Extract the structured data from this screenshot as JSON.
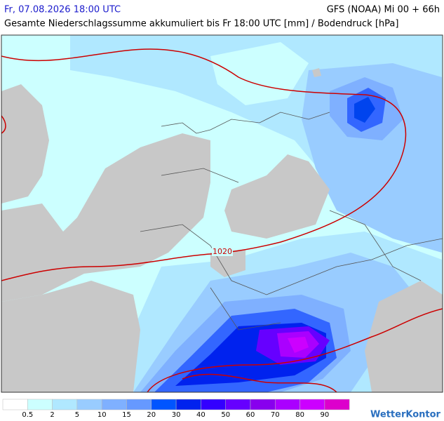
{
  "header": {
    "valid_time": "Fr, 07.08.2026 18:00 UTC",
    "model_run": "GFS (NOAA) Mi 00 + 66h",
    "title": "Gesamte Niederschlagssumme akkumuliert bis Fr 18:00 UTC [mm] / Bodendruck [hPa]"
  },
  "map": {
    "isobar_labels": [
      "1020"
    ]
  },
  "legend": {
    "colors": [
      "#ffffff",
      "#ccffff",
      "#b0e8ff",
      "#99ccff",
      "#7fb0ff",
      "#6699ff",
      "#0055ff",
      "#0022ee",
      "#3300ff",
      "#6600ff",
      "#8800ee",
      "#aa00ff",
      "#cc00ff",
      "#dd00cc"
    ],
    "labels": [
      0.5,
      2,
      5,
      10,
      15,
      20,
      30,
      40,
      50,
      60,
      70,
      80,
      90
    ]
  },
  "footer": {
    "logo": "WetterKontor"
  }
}
